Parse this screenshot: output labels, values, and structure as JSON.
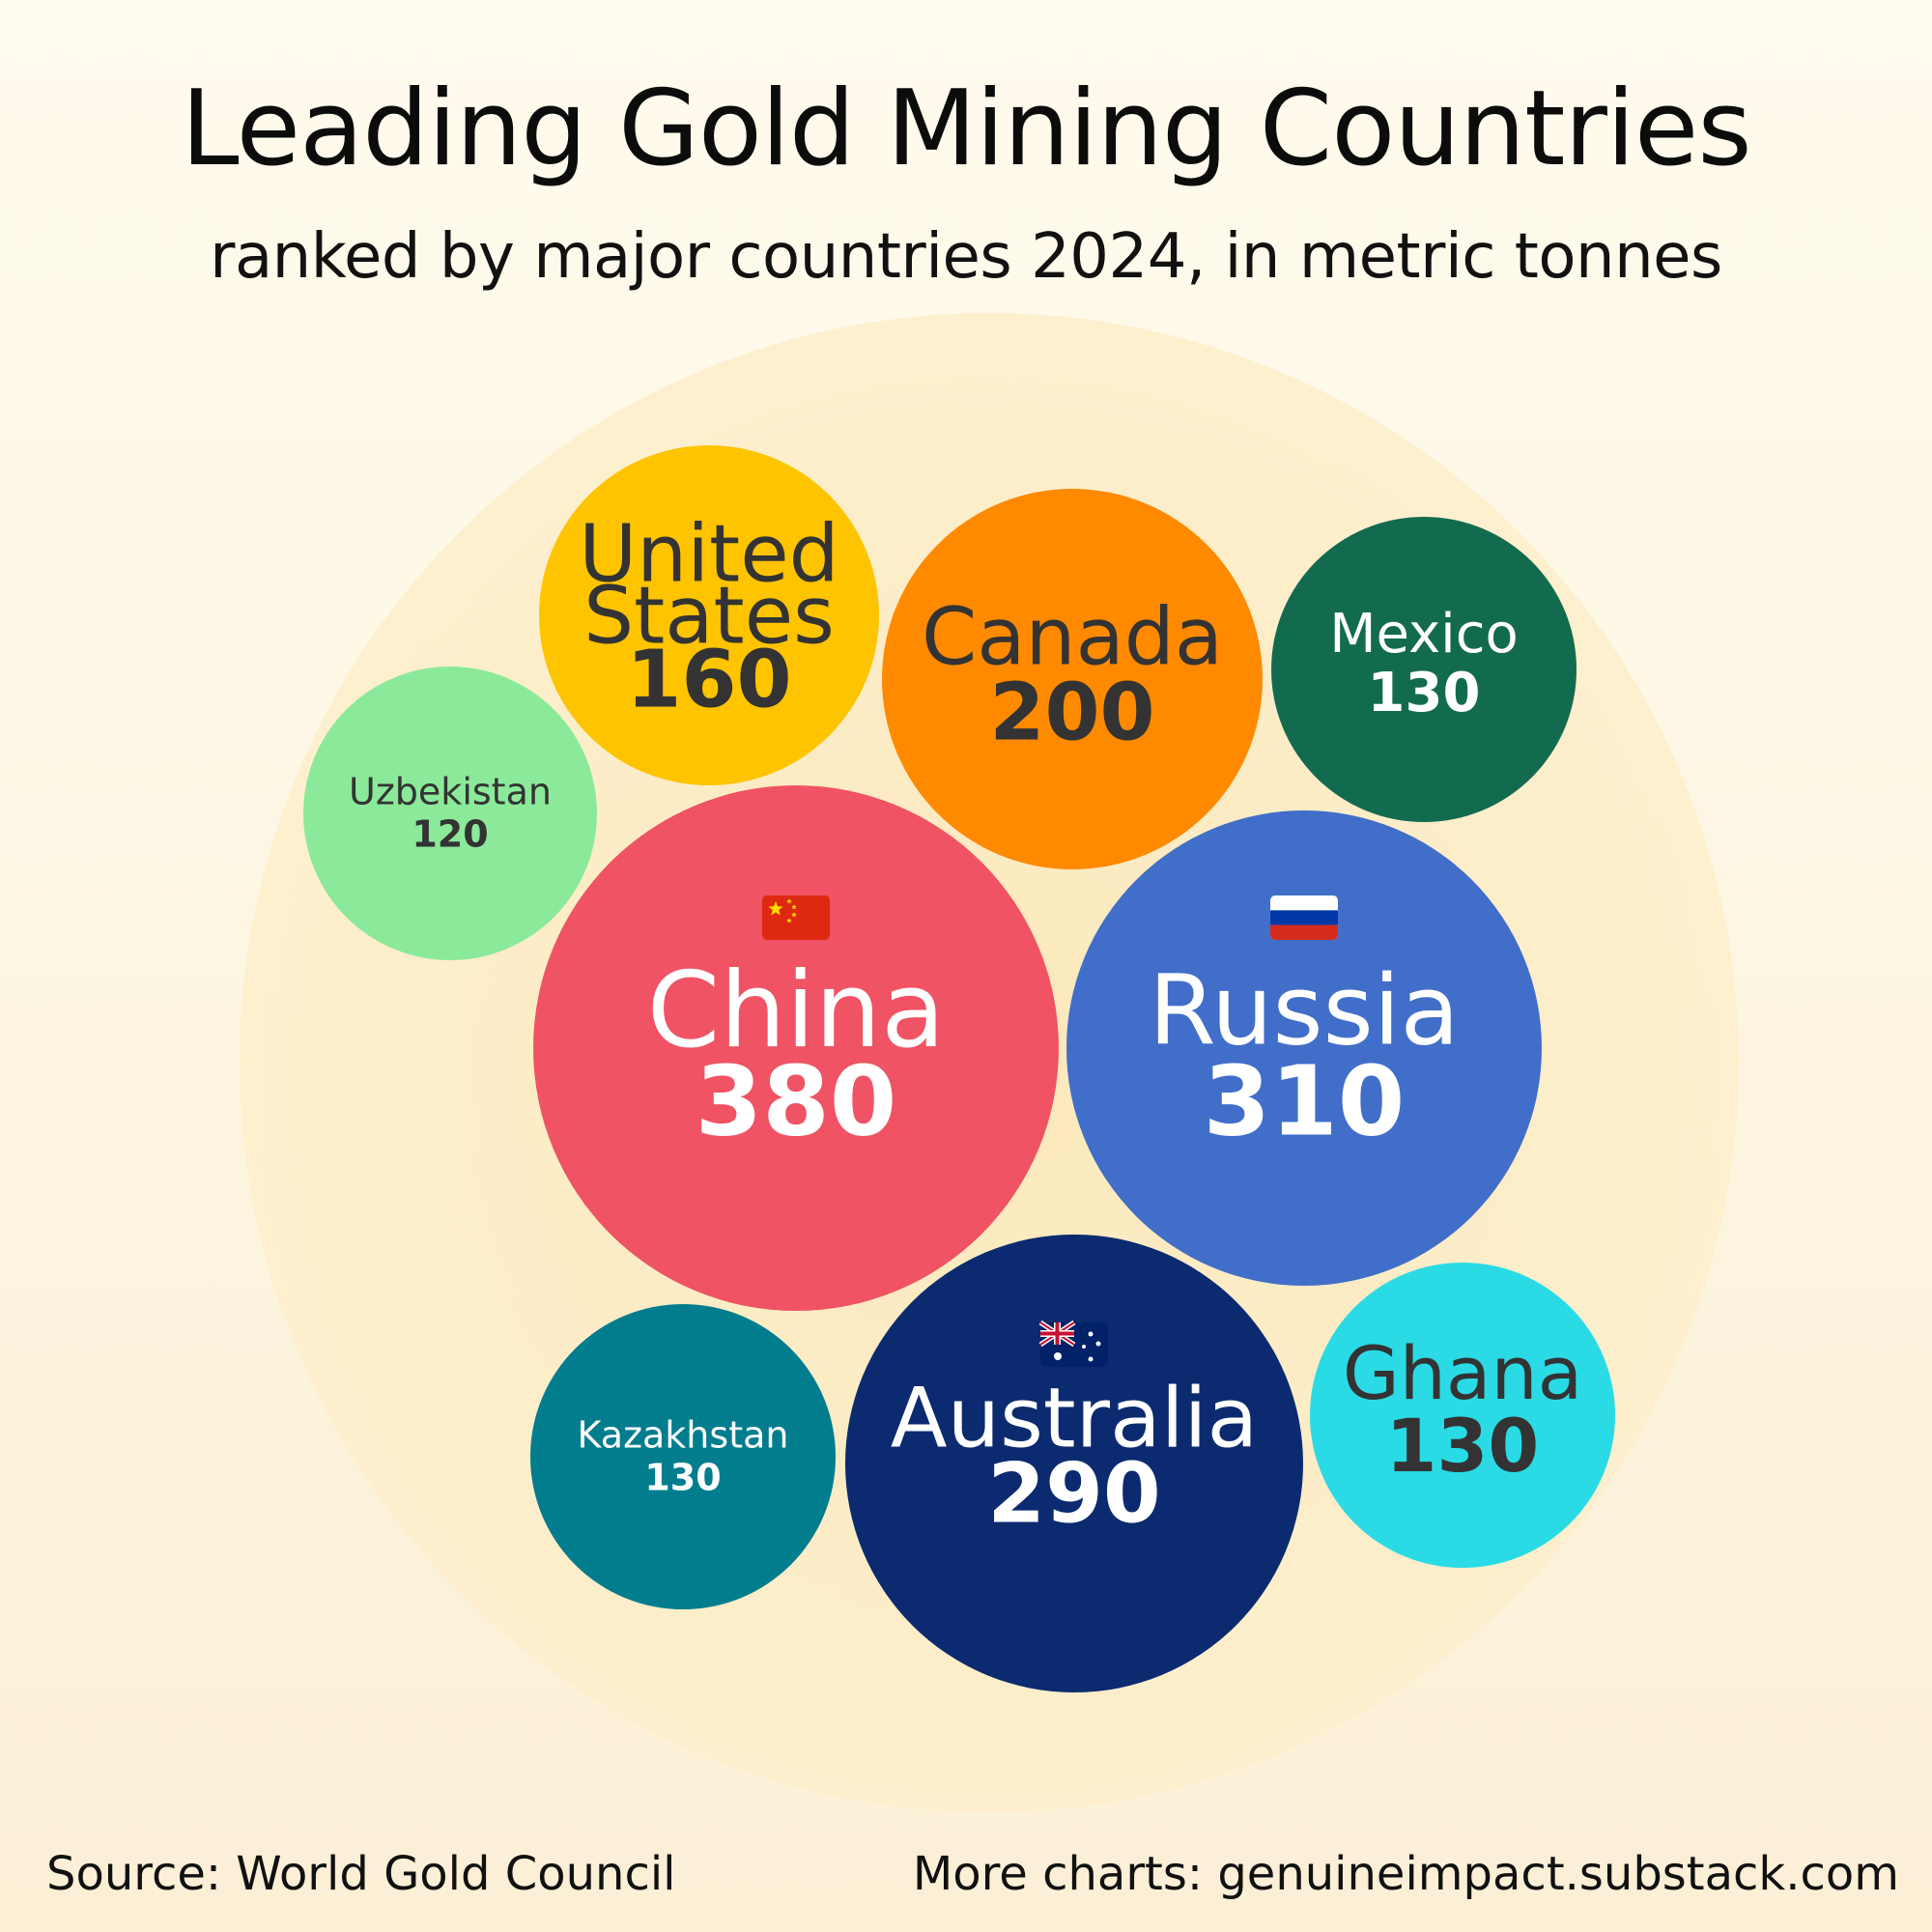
{
  "title": "Leading Gold Mining Countries",
  "subtitle": "ranked by major countries 2024, in metric tonnes",
  "footer": {
    "source": "Source: World Gold Council",
    "more": "More charts: genuineimpact.substack.com"
  },
  "chart_data": {
    "type": "bubble",
    "unit": "metric tonnes",
    "series": [
      {
        "name": "China",
        "value": 380,
        "color": "#ef5364",
        "text_color": "#ffffff",
        "flag": "china-flag-icon"
      },
      {
        "name": "Russia",
        "value": 310,
        "color": "#416ec9",
        "text_color": "#ffffff",
        "flag": "russia-flag-icon"
      },
      {
        "name": "Australia",
        "value": 290,
        "color": "#0b2a6f",
        "text_color": "#ffffff",
        "flag": "australia-flag-icon"
      },
      {
        "name": "Canada",
        "value": 200,
        "color": "#ff8a00",
        "text_color": "#333333"
      },
      {
        "name": "United States",
        "value": 160,
        "color": "#ffc400",
        "text_color": "#333333"
      },
      {
        "name": "Mexico",
        "value": 130,
        "color": "#136b4f",
        "text_color": "#ffffff"
      },
      {
        "name": "Ghana",
        "value": 130,
        "color": "#2adbe5",
        "text_color": "#333333"
      },
      {
        "name": "Kazakhstan",
        "value": 130,
        "color": "#017d8e",
        "text_color": "#ffffff"
      },
      {
        "name": "Uzbekistan",
        "value": 120,
        "color": "#8be99a",
        "text_color": "#333333"
      }
    ]
  }
}
